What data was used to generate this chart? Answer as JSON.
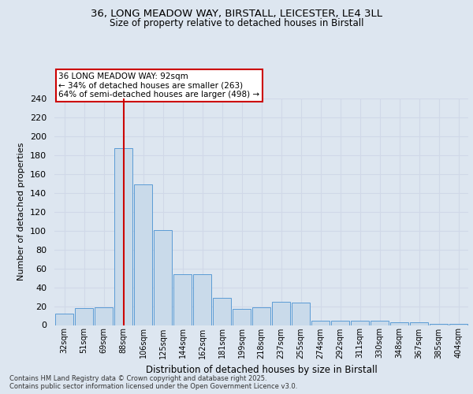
{
  "title_line1": "36, LONG MEADOW WAY, BIRSTALL, LEICESTER, LE4 3LL",
  "title_line2": "Size of property relative to detached houses in Birstall",
  "xlabel": "Distribution of detached houses by size in Birstall",
  "ylabel": "Number of detached properties",
  "bins": [
    "32sqm",
    "51sqm",
    "69sqm",
    "88sqm",
    "106sqm",
    "125sqm",
    "144sqm",
    "162sqm",
    "181sqm",
    "199sqm",
    "218sqm",
    "237sqm",
    "255sqm",
    "274sqm",
    "292sqm",
    "311sqm",
    "330sqm",
    "348sqm",
    "367sqm",
    "385sqm",
    "404sqm"
  ],
  "values": [
    12,
    18,
    19,
    187,
    149,
    101,
    54,
    54,
    29,
    17,
    19,
    25,
    24,
    5,
    5,
    5,
    5,
    3,
    3,
    1,
    1
  ],
  "bar_color": "#c9daea",
  "bar_edge_color": "#5b9bd5",
  "red_line_x": 3.5,
  "annotation_text": "36 LONG MEADOW WAY: 92sqm\n← 34% of detached houses are smaller (263)\n64% of semi-detached houses are larger (498) →",
  "annotation_box_color": "#ffffff",
  "annotation_box_edge": "#cc0000",
  "red_line_color": "#cc0000",
  "grid_color": "#d0d8e8",
  "bg_color": "#dde6f0",
  "plot_bg_color": "#dde6f0",
  "footer_text": "Contains HM Land Registry data © Crown copyright and database right 2025.\nContains public sector information licensed under the Open Government Licence v3.0.",
  "ylim": [
    0,
    240
  ],
  "yticks": [
    0,
    20,
    40,
    60,
    80,
    100,
    120,
    140,
    160,
    180,
    200,
    220,
    240
  ]
}
